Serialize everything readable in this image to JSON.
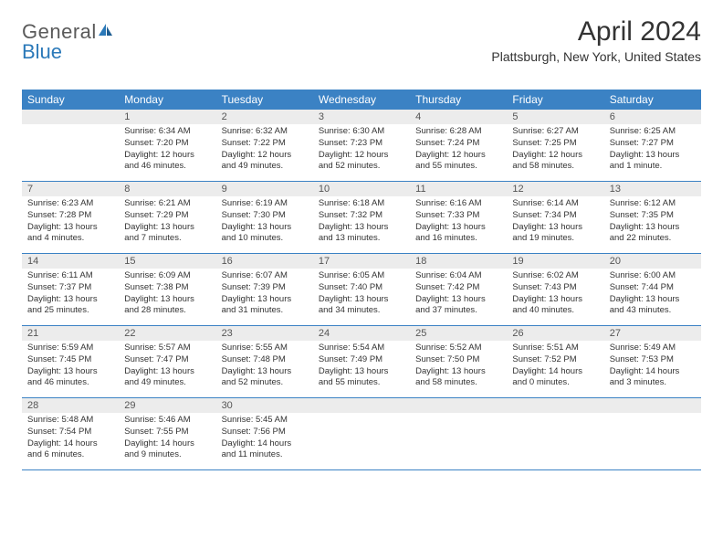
{
  "logo": {
    "text1": "General",
    "text2": "Blue"
  },
  "title": "April 2024",
  "subtitle": "Plattsburgh, New York, United States",
  "colors": {
    "header_bg": "#3b82c4",
    "header_text": "#ffffff",
    "date_bg": "#ececec",
    "body_text": "#333333",
    "rule": "#3b82c4",
    "logo_gray": "#5a5a5a",
    "logo_blue": "#2b79b9"
  },
  "typography": {
    "title_fontsize": 30,
    "subtitle_fontsize": 14,
    "dayheader_fontsize": 12,
    "date_fontsize": 11,
    "body_fontsize": 9.5
  },
  "day_names": [
    "Sunday",
    "Monday",
    "Tuesday",
    "Wednesday",
    "Thursday",
    "Friday",
    "Saturday"
  ],
  "weeks": [
    [
      {
        "date": "",
        "lines": [
          "",
          "",
          "",
          ""
        ]
      },
      {
        "date": "1",
        "lines": [
          "Sunrise: 6:34 AM",
          "Sunset: 7:20 PM",
          "Daylight: 12 hours",
          "and 46 minutes."
        ]
      },
      {
        "date": "2",
        "lines": [
          "Sunrise: 6:32 AM",
          "Sunset: 7:22 PM",
          "Daylight: 12 hours",
          "and 49 minutes."
        ]
      },
      {
        "date": "3",
        "lines": [
          "Sunrise: 6:30 AM",
          "Sunset: 7:23 PM",
          "Daylight: 12 hours",
          "and 52 minutes."
        ]
      },
      {
        "date": "4",
        "lines": [
          "Sunrise: 6:28 AM",
          "Sunset: 7:24 PM",
          "Daylight: 12 hours",
          "and 55 minutes."
        ]
      },
      {
        "date": "5",
        "lines": [
          "Sunrise: 6:27 AM",
          "Sunset: 7:25 PM",
          "Daylight: 12 hours",
          "and 58 minutes."
        ]
      },
      {
        "date": "6",
        "lines": [
          "Sunrise: 6:25 AM",
          "Sunset: 7:27 PM",
          "Daylight: 13 hours",
          "and 1 minute."
        ]
      }
    ],
    [
      {
        "date": "7",
        "lines": [
          "Sunrise: 6:23 AM",
          "Sunset: 7:28 PM",
          "Daylight: 13 hours",
          "and 4 minutes."
        ]
      },
      {
        "date": "8",
        "lines": [
          "Sunrise: 6:21 AM",
          "Sunset: 7:29 PM",
          "Daylight: 13 hours",
          "and 7 minutes."
        ]
      },
      {
        "date": "9",
        "lines": [
          "Sunrise: 6:19 AM",
          "Sunset: 7:30 PM",
          "Daylight: 13 hours",
          "and 10 minutes."
        ]
      },
      {
        "date": "10",
        "lines": [
          "Sunrise: 6:18 AM",
          "Sunset: 7:32 PM",
          "Daylight: 13 hours",
          "and 13 minutes."
        ]
      },
      {
        "date": "11",
        "lines": [
          "Sunrise: 6:16 AM",
          "Sunset: 7:33 PM",
          "Daylight: 13 hours",
          "and 16 minutes."
        ]
      },
      {
        "date": "12",
        "lines": [
          "Sunrise: 6:14 AM",
          "Sunset: 7:34 PM",
          "Daylight: 13 hours",
          "and 19 minutes."
        ]
      },
      {
        "date": "13",
        "lines": [
          "Sunrise: 6:12 AM",
          "Sunset: 7:35 PM",
          "Daylight: 13 hours",
          "and 22 minutes."
        ]
      }
    ],
    [
      {
        "date": "14",
        "lines": [
          "Sunrise: 6:11 AM",
          "Sunset: 7:37 PM",
          "Daylight: 13 hours",
          "and 25 minutes."
        ]
      },
      {
        "date": "15",
        "lines": [
          "Sunrise: 6:09 AM",
          "Sunset: 7:38 PM",
          "Daylight: 13 hours",
          "and 28 minutes."
        ]
      },
      {
        "date": "16",
        "lines": [
          "Sunrise: 6:07 AM",
          "Sunset: 7:39 PM",
          "Daylight: 13 hours",
          "and 31 minutes."
        ]
      },
      {
        "date": "17",
        "lines": [
          "Sunrise: 6:05 AM",
          "Sunset: 7:40 PM",
          "Daylight: 13 hours",
          "and 34 minutes."
        ]
      },
      {
        "date": "18",
        "lines": [
          "Sunrise: 6:04 AM",
          "Sunset: 7:42 PM",
          "Daylight: 13 hours",
          "and 37 minutes."
        ]
      },
      {
        "date": "19",
        "lines": [
          "Sunrise: 6:02 AM",
          "Sunset: 7:43 PM",
          "Daylight: 13 hours",
          "and 40 minutes."
        ]
      },
      {
        "date": "20",
        "lines": [
          "Sunrise: 6:00 AM",
          "Sunset: 7:44 PM",
          "Daylight: 13 hours",
          "and 43 minutes."
        ]
      }
    ],
    [
      {
        "date": "21",
        "lines": [
          "Sunrise: 5:59 AM",
          "Sunset: 7:45 PM",
          "Daylight: 13 hours",
          "and 46 minutes."
        ]
      },
      {
        "date": "22",
        "lines": [
          "Sunrise: 5:57 AM",
          "Sunset: 7:47 PM",
          "Daylight: 13 hours",
          "and 49 minutes."
        ]
      },
      {
        "date": "23",
        "lines": [
          "Sunrise: 5:55 AM",
          "Sunset: 7:48 PM",
          "Daylight: 13 hours",
          "and 52 minutes."
        ]
      },
      {
        "date": "24",
        "lines": [
          "Sunrise: 5:54 AM",
          "Sunset: 7:49 PM",
          "Daylight: 13 hours",
          "and 55 minutes."
        ]
      },
      {
        "date": "25",
        "lines": [
          "Sunrise: 5:52 AM",
          "Sunset: 7:50 PM",
          "Daylight: 13 hours",
          "and 58 minutes."
        ]
      },
      {
        "date": "26",
        "lines": [
          "Sunrise: 5:51 AM",
          "Sunset: 7:52 PM",
          "Daylight: 14 hours",
          "and 0 minutes."
        ]
      },
      {
        "date": "27",
        "lines": [
          "Sunrise: 5:49 AM",
          "Sunset: 7:53 PM",
          "Daylight: 14 hours",
          "and 3 minutes."
        ]
      }
    ],
    [
      {
        "date": "28",
        "lines": [
          "Sunrise: 5:48 AM",
          "Sunset: 7:54 PM",
          "Daylight: 14 hours",
          "and 6 minutes."
        ]
      },
      {
        "date": "29",
        "lines": [
          "Sunrise: 5:46 AM",
          "Sunset: 7:55 PM",
          "Daylight: 14 hours",
          "and 9 minutes."
        ]
      },
      {
        "date": "30",
        "lines": [
          "Sunrise: 5:45 AM",
          "Sunset: 7:56 PM",
          "Daylight: 14 hours",
          "and 11 minutes."
        ]
      },
      {
        "date": "",
        "lines": [
          "",
          "",
          "",
          ""
        ]
      },
      {
        "date": "",
        "lines": [
          "",
          "",
          "",
          ""
        ]
      },
      {
        "date": "",
        "lines": [
          "",
          "",
          "",
          ""
        ]
      },
      {
        "date": "",
        "lines": [
          "",
          "",
          "",
          ""
        ]
      }
    ]
  ]
}
